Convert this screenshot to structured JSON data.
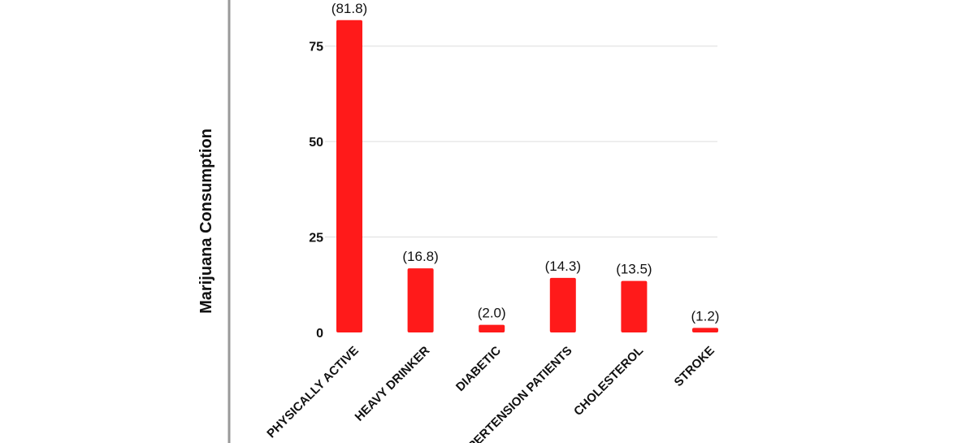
{
  "chart_data": {
    "type": "bar",
    "title": "",
    "xlabel": "",
    "ylabel": "Marijuana Consumption",
    "categories": [
      "PHYSICALLY ACTIVE",
      "HEAVY DRINKER",
      "DIABETIC",
      "HYPERTENSION PATIENTS",
      "CHOLESTEROL",
      "STROKE"
    ],
    "values": [
      81.8,
      16.8,
      2.0,
      14.3,
      13.5,
      1.2
    ],
    "value_labels": [
      "(81.8)",
      "(16.8)",
      "(2.0)",
      "(14.3)",
      "(13.5)",
      "(1.2)"
    ],
    "ylim": [
      0,
      85
    ],
    "yticks": [
      0,
      25,
      50,
      75
    ],
    "grid": true,
    "legend": "none",
    "colors": {
      "bar": "#ff1a1a",
      "grid": "#dddddd",
      "axis_line": "#999999",
      "text": "#111111"
    }
  }
}
